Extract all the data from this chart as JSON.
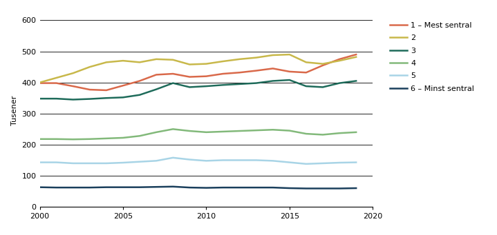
{
  "years": [
    2000,
    2001,
    2002,
    2003,
    2004,
    2005,
    2006,
    2007,
    2008,
    2009,
    2010,
    2011,
    2012,
    2013,
    2014,
    2015,
    2016,
    2017,
    2018,
    2019
  ],
  "series": {
    "1 – Mest sentral": [
      398,
      398,
      388,
      377,
      375,
      390,
      405,
      425,
      428,
      418,
      420,
      428,
      432,
      438,
      445,
      435,
      432,
      455,
      475,
      490
    ],
    "2": [
      400,
      415,
      430,
      450,
      465,
      470,
      465,
      475,
      473,
      458,
      460,
      468,
      475,
      480,
      488,
      490,
      465,
      460,
      470,
      482
    ],
    "3": [
      348,
      348,
      345,
      347,
      350,
      352,
      360,
      378,
      398,
      385,
      388,
      392,
      395,
      398,
      405,
      408,
      388,
      385,
      398,
      405
    ],
    "4": [
      218,
      218,
      217,
      218,
      220,
      222,
      228,
      240,
      250,
      244,
      240,
      242,
      244,
      246,
      248,
      245,
      235,
      232,
      237,
      240
    ],
    "5": [
      143,
      143,
      140,
      140,
      140,
      142,
      145,
      148,
      158,
      152,
      148,
      150,
      150,
      150,
      148,
      143,
      138,
      140,
      142,
      143
    ],
    "6 – Minst sentral": [
      63,
      62,
      62,
      62,
      63,
      63,
      63,
      64,
      65,
      62,
      61,
      62,
      62,
      62,
      62,
      60,
      59,
      59,
      59,
      60
    ]
  },
  "colors": {
    "1 – Mest sentral": "#d9694a",
    "2": "#c8b84a",
    "3": "#1e6b5a",
    "4": "#82b97a",
    "5": "#a8d4e6",
    "6 – Minst sentral": "#1a3f5c"
  },
  "ylabel": "Tusener",
  "ylim": [
    0,
    620
  ],
  "yticks": [
    0,
    100,
    200,
    300,
    400,
    500,
    600
  ],
  "xlim": [
    2000,
    2020
  ],
  "xticks": [
    2000,
    2005,
    2010,
    2015,
    2020
  ],
  "linewidth": 1.8,
  "ylabel_fontsize": 8,
  "tick_fontsize": 8,
  "legend_fontsize": 8
}
